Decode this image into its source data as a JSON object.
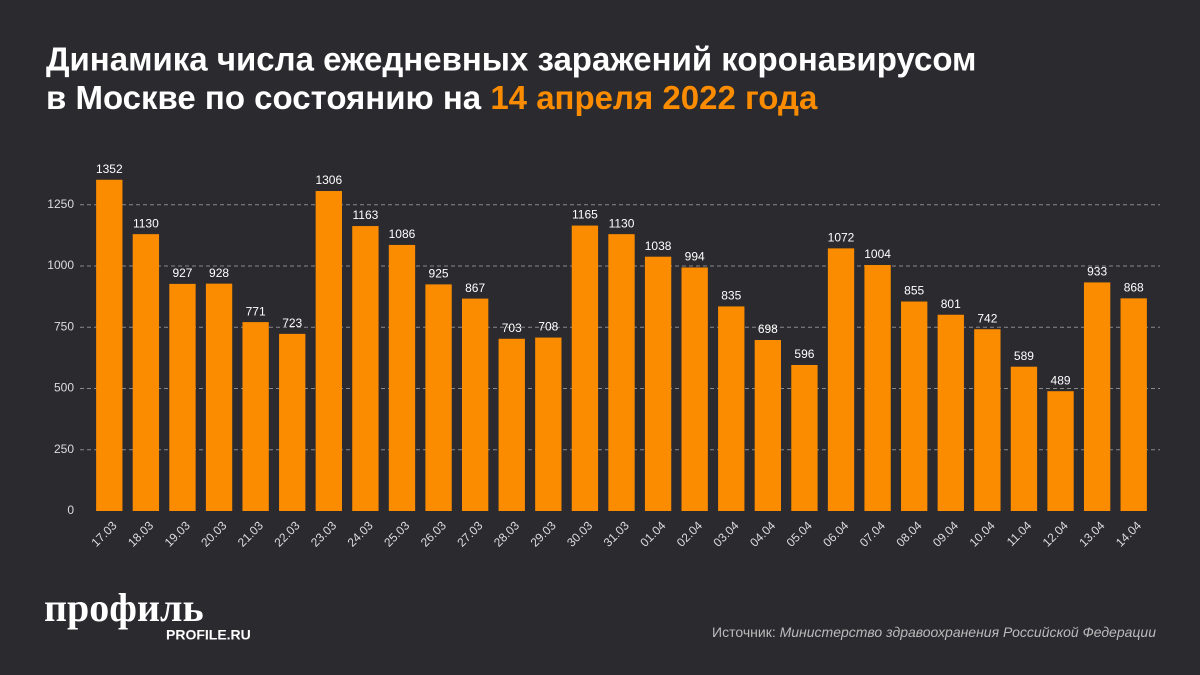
{
  "chart_data": {
    "type": "bar",
    "title": "Динамика числа ежедневных заражений коронавирусом в Москве по состоянию на",
    "title_date": "14 апреля 2022 года",
    "categories": [
      "17.03",
      "18.03",
      "19.03",
      "20.03",
      "21.03",
      "22.03",
      "23.03",
      "24.03",
      "25.03",
      "26.03",
      "27.03",
      "28.03",
      "29.03",
      "30.03",
      "31.03",
      "01.04",
      "02.04",
      "03.04",
      "04.04",
      "05.04",
      "06.04",
      "07.04",
      "08.04",
      "09.04",
      "10.04",
      "11.04",
      "12.04",
      "13.04",
      "14.04"
    ],
    "values": [
      1352,
      1130,
      927,
      928,
      771,
      723,
      1306,
      1163,
      1086,
      925,
      867,
      703,
      708,
      1165,
      1130,
      1038,
      994,
      835,
      698,
      596,
      1072,
      1004,
      855,
      801,
      742,
      589,
      489,
      933,
      868
    ],
    "color": "#fb8c00",
    "ylim": [
      0,
      1400
    ],
    "yticks": [
      0,
      250,
      500,
      750,
      1000,
      1250
    ],
    "grid": true,
    "source_label": "Источник:",
    "source": "Министерство здравоохранения Российской Федерации",
    "logo": "профиль",
    "logo_url": "PROFILE.RU"
  }
}
